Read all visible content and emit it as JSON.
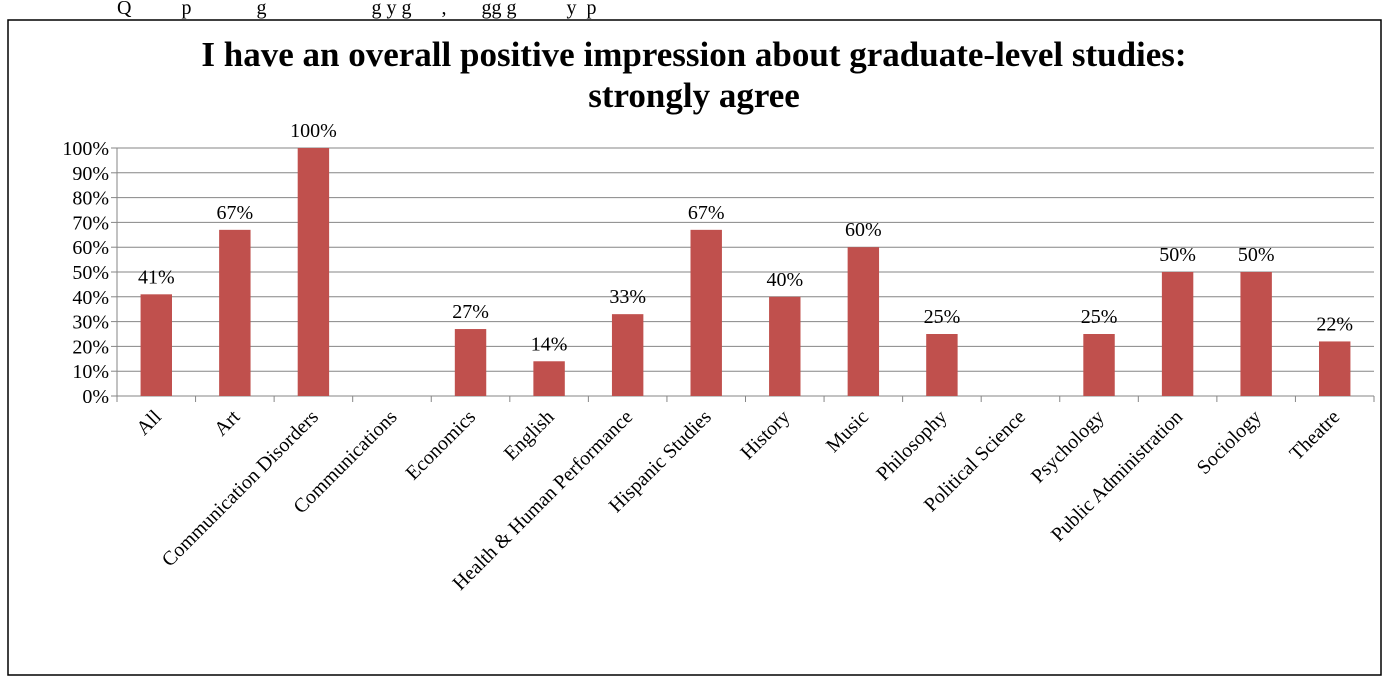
{
  "top_note": "Q          p             g                     g y g      ,       gg g          y  p",
  "chart_data": {
    "type": "bar",
    "title_line1": "I have an overall positive impression about graduate-level studies:",
    "title_line2": "strongly agree",
    "categories": [
      "All",
      "Art",
      "Communication Disorders",
      "Communications",
      "Economics",
      "English",
      "Health & Human Performance",
      "Hispanic Studies",
      "History",
      "Music",
      "Philosophy",
      "Political Science",
      "Psychology",
      "Public Administration",
      "Sociology",
      "Theatre"
    ],
    "series": [
      {
        "values": [
          41,
          67,
          100,
          null,
          27,
          14,
          33,
          67,
          40,
          60,
          25,
          null,
          25,
          50,
          50,
          22
        ]
      }
    ],
    "data_labels": [
      "41%",
      "67%",
      "100%",
      "",
      "27%",
      "14%",
      "33%",
      "67%",
      "40%",
      "60%",
      "25%",
      "",
      "25%",
      "50%",
      "50%",
      "22%"
    ],
    "y_ticks": [
      "0%",
      "10%",
      "20%",
      "30%",
      "40%",
      "50%",
      "60%",
      "70%",
      "80%",
      "90%",
      "100%"
    ],
    "ylim": [
      0,
      100
    ],
    "grid": true,
    "legend": "none",
    "bar_color": "#c0504d"
  }
}
